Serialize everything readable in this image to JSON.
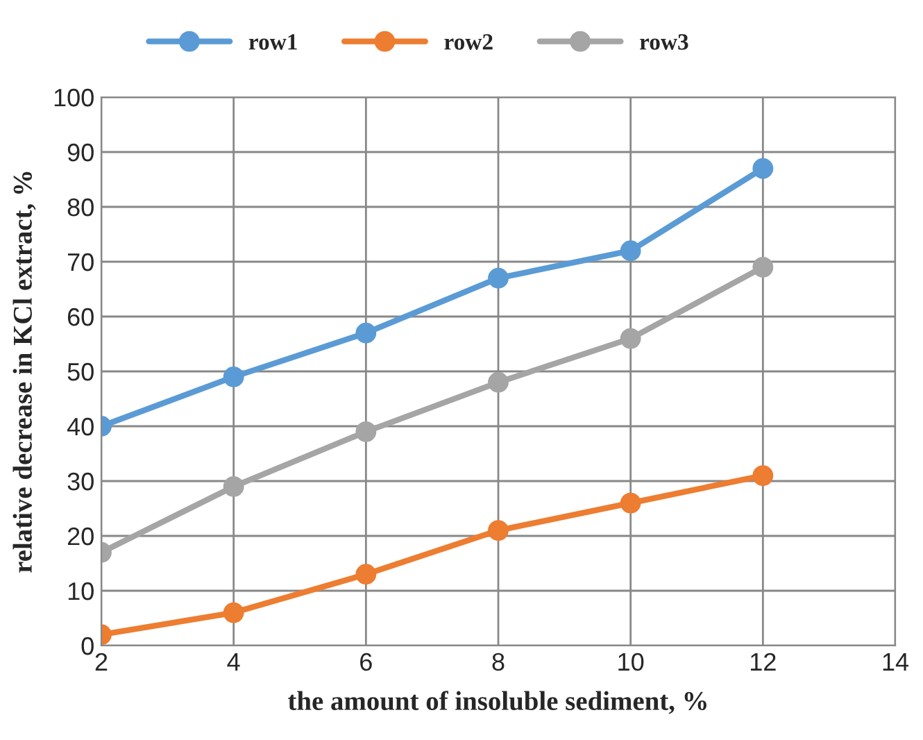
{
  "chart_data": {
    "type": "line",
    "xlabel": "the amount of insoluble sediment, %",
    "ylabel": "relative decrease in KCl extract, %",
    "x": [
      2,
      4,
      6,
      8,
      10,
      12
    ],
    "series": [
      {
        "name": "row1",
        "color": "#5b9bd5",
        "values": [
          40,
          49,
          57,
          67,
          72,
          87
        ]
      },
      {
        "name": "row2",
        "color": "#ed7d31",
        "values": [
          2,
          6,
          13,
          21,
          26,
          31
        ]
      },
      {
        "name": "row3",
        "color": "#a5a5a5",
        "values": [
          17,
          29,
          39,
          48,
          56,
          69
        ]
      }
    ],
    "xlim": [
      2,
      14
    ],
    "xticks": [
      2,
      4,
      6,
      8,
      10,
      12,
      14
    ],
    "ylim": [
      0,
      100
    ],
    "yticks": [
      0,
      10,
      20,
      30,
      40,
      50,
      60,
      70,
      80,
      90,
      100
    ],
    "grid": true,
    "legend": "top",
    "marker": "circle",
    "line_style": "solid"
  }
}
